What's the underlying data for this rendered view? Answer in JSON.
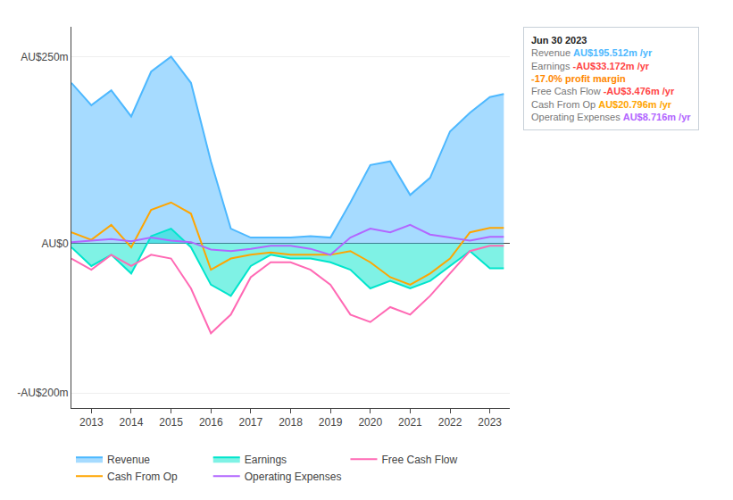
{
  "chart_data": {
    "type": "line",
    "x": [
      2012.5,
      2013,
      2013.5,
      2014,
      2014.5,
      2015,
      2015.5,
      2016,
      2016.5,
      2017,
      2017.5,
      2018,
      2018.5,
      2019,
      2019.5,
      2020,
      2020.5,
      2021,
      2021.5,
      2022,
      2022.5,
      2023,
      2023.35
    ],
    "series": [
      {
        "name": "Revenue",
        "color": "#4db8ff",
        "type": "area",
        "values": [
          215,
          185,
          205,
          170,
          230,
          250,
          215,
          110,
          20,
          8,
          8,
          8,
          10,
          8,
          55,
          105,
          110,
          65,
          88,
          150,
          175,
          196,
          200
        ]
      },
      {
        "name": "Earnings",
        "color": "#00e5cc",
        "type": "area",
        "values": [
          -5,
          -30,
          -15,
          -40,
          10,
          20,
          -5,
          -55,
          -70,
          -30,
          -15,
          -20,
          -20,
          -25,
          -35,
          -60,
          -50,
          -60,
          -50,
          -30,
          -10,
          -33,
          -33
        ]
      },
      {
        "name": "Free Cash Flow",
        "color": "#ff69b4",
        "type": "line",
        "values": [
          -20,
          -35,
          -15,
          -30,
          -15,
          -20,
          -60,
          -120,
          -95,
          -45,
          -25,
          -25,
          -35,
          -55,
          -95,
          -105,
          -85,
          -95,
          -70,
          -40,
          -10,
          -3,
          -3
        ]
      },
      {
        "name": "Cash From Op",
        "color": "#ffa500",
        "type": "line",
        "values": [
          15,
          5,
          25,
          -5,
          45,
          55,
          40,
          -35,
          -20,
          -15,
          -12,
          -15,
          -15,
          -15,
          -10,
          -25,
          -45,
          -55,
          -40,
          -20,
          15,
          21,
          21
        ]
      },
      {
        "name": "Operating Expenses",
        "color": "#b266ff",
        "type": "line",
        "values": [
          2,
          4,
          6,
          3,
          8,
          4,
          2,
          -8,
          -10,
          -7,
          -3,
          -3,
          -7,
          -15,
          8,
          20,
          15,
          25,
          12,
          8,
          4,
          9,
          9
        ]
      }
    ],
    "xlim": [
      2012.5,
      2023.5
    ],
    "xticks": [
      2013,
      2014,
      2015,
      2016,
      2017,
      2018,
      2019,
      2020,
      2021,
      2022,
      2023
    ],
    "ylim": [
      -220,
      290
    ],
    "yticks": [
      {
        "value": -200,
        "label": "-AU$200m"
      },
      {
        "value": 0,
        "label": "AU$0"
      },
      {
        "value": 250,
        "label": "AU$250m"
      }
    ],
    "grid": true,
    "legend": "bottom",
    "annotations": [
      {
        "text": "Jun 30 2023",
        "rows": [
          {
            "label": "Revenue",
            "value": "AU$195.512m /yr",
            "color": "#4db8ff"
          },
          {
            "label": "Earnings",
            "value": "-AU$33.172m /yr",
            "color": "#ff4444"
          },
          {
            "value": "-17.0% profit margin",
            "color": "#ff8800"
          },
          {
            "label": "Free Cash Flow",
            "value": "-AU$3.476m /yr",
            "color": "#ff4444"
          },
          {
            "label": "Cash From Op",
            "value": "AU$20.796m /yr",
            "color": "#ffa500"
          },
          {
            "label": "Operating Expenses",
            "value": "AU$8.716m /yr",
            "color": "#b266ff"
          }
        ]
      }
    ]
  }
}
